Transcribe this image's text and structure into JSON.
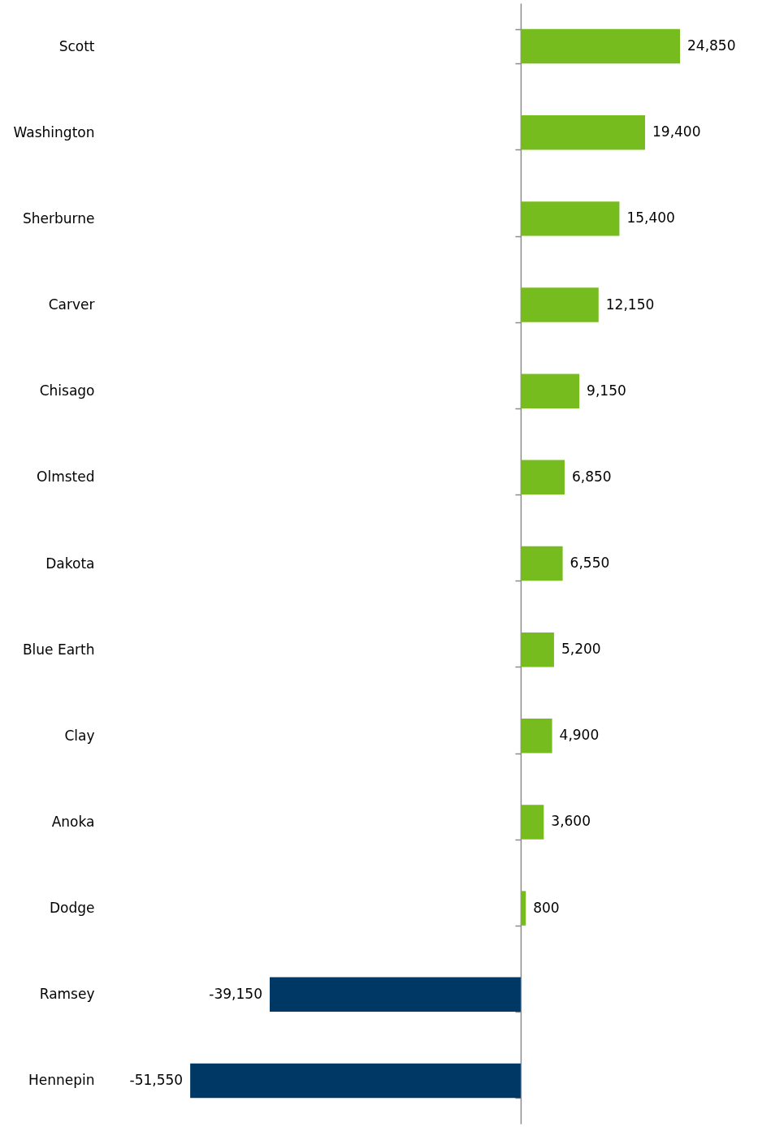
{
  "chart_data": {
    "type": "bar",
    "orientation": "horizontal",
    "categories": [
      "Scott",
      "Washington",
      "Sherburne",
      "Carver",
      "Chisago",
      "Olmsted",
      "Dakota",
      "Blue Earth",
      "Clay",
      "Anoka",
      "Dodge",
      "Ramsey",
      "Hennepin"
    ],
    "values": [
      24850,
      19400,
      15400,
      12150,
      9150,
      6850,
      6550,
      5200,
      4900,
      3600,
      800,
      -39150,
      -51550
    ],
    "colors": [
      "#77bc1f",
      "#77bc1f",
      "#77bc1f",
      "#77bc1f",
      "#77bc1f",
      "#77bc1f",
      "#77bc1f",
      "#77bc1f",
      "#77bc1f",
      "#77bc1f",
      "#77bc1f",
      "#003865",
      "#003865"
    ],
    "value_labels": [
      "24,850",
      "19,400",
      "15,400",
      "12,150",
      "9,150",
      "6,850",
      "6,550",
      "5,200",
      "4,900",
      "3,600",
      "800",
      "-39,150",
      "-51,550"
    ]
  }
}
